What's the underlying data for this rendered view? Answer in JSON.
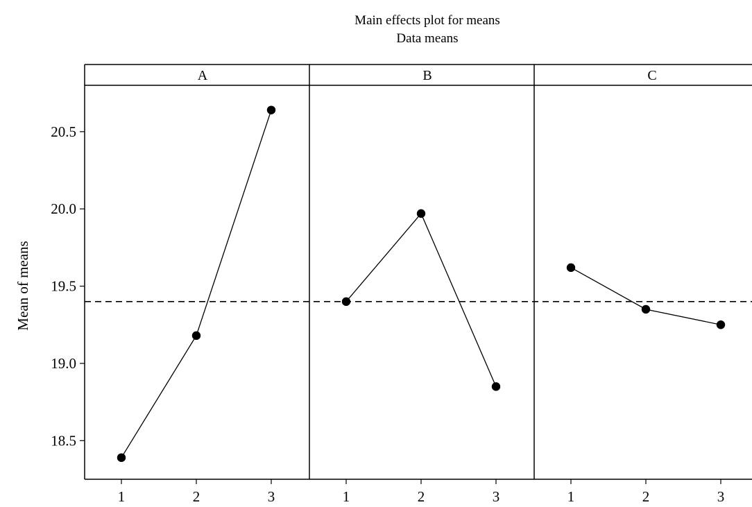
{
  "chart_data": {
    "type": "line",
    "title": "Main effects plot for means",
    "subtitle": "Data means",
    "ylabel": "Mean of means",
    "xlabel": "",
    "ylim": [
      18.25,
      20.8
    ],
    "yticks": [
      "18.5",
      "19.0",
      "19.5",
      "20.0",
      "20.5"
    ],
    "reference_line": {
      "value": 19.4,
      "style": "dashed"
    },
    "panels": [
      {
        "name": "A",
        "levels": [
          "1",
          "2",
          "3"
        ],
        "values": [
          18.39,
          19.18,
          20.64
        ]
      },
      {
        "name": "B",
        "levels": [
          "1",
          "2",
          "3"
        ],
        "values": [
          19.4,
          19.97,
          18.85
        ]
      },
      {
        "name": "C",
        "levels": [
          "1",
          "2",
          "3"
        ],
        "values": [
          19.62,
          19.35,
          19.25
        ]
      }
    ],
    "grid": false,
    "legend": "none",
    "line_color": "#000000",
    "marker": "filled-circle"
  }
}
